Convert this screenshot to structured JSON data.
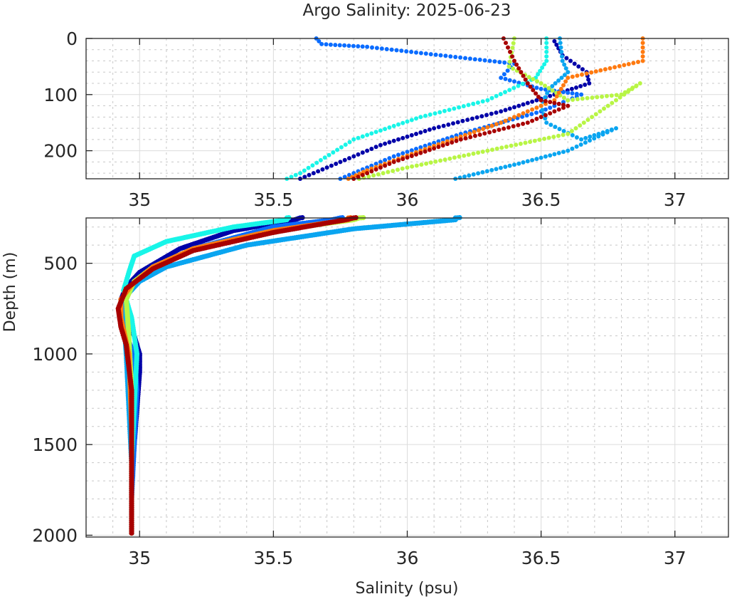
{
  "title": "Argo Salinity: 2025-06-23",
  "colors": {
    "axis": "#262626",
    "grid_major": "#dcdcdc",
    "grid_minor": "#c8c8c8"
  },
  "chart_data": [
    {
      "name": "upper-panel",
      "type": "scatter",
      "title": "Argo Salinity: 2025-06-23",
      "xlabel": "",
      "ylabel": "",
      "xlim": [
        34.8,
        37.2
      ],
      "ylim": [
        0,
        250
      ],
      "y_reversed": true,
      "xticks": [
        35,
        35.5,
        36,
        36.5,
        37
      ],
      "xtick_labels": [
        "35",
        "35.5",
        "36",
        "36.5",
        "37"
      ],
      "yticks": [
        0,
        100,
        200
      ],
      "ytick_labels": [
        "0",
        "100",
        "200"
      ],
      "grid": "major+minor",
      "legend": "none"
    },
    {
      "name": "lower-panel",
      "type": "scatter",
      "xlabel": "Salinity (psu)",
      "ylabel": "Depth (m)",
      "xlim": [
        34.8,
        37.2
      ],
      "ylim": [
        250,
        2010
      ],
      "y_reversed": true,
      "xticks": [
        35,
        35.5,
        36,
        36.5,
        37
      ],
      "xtick_labels": [
        "35",
        "35.5",
        "36",
        "36.5",
        "37"
      ],
      "yticks": [
        500,
        1000,
        1500,
        2000
      ],
      "ytick_labels": [
        "500",
        "1000",
        "1500",
        "2000"
      ],
      "grid": "major+minor",
      "legend": "none"
    }
  ],
  "profiles": [
    {
      "name": "float-dark-blue",
      "color": "#0000a8",
      "points": [
        [
          36.55,
          5
        ],
        [
          36.58,
          30
        ],
        [
          36.67,
          60
        ],
        [
          36.68,
          80
        ],
        [
          36.55,
          100
        ],
        [
          36.35,
          130
        ],
        [
          36.1,
          160
        ],
        [
          35.9,
          190
        ],
        [
          35.75,
          220
        ],
        [
          35.6,
          250
        ],
        [
          35.58,
          260
        ],
        [
          35.35,
          320
        ],
        [
          35.15,
          420
        ],
        [
          35.0,
          550
        ],
        [
          34.95,
          630
        ],
        [
          34.93,
          700
        ],
        [
          34.95,
          800
        ],
        [
          34.98,
          900
        ],
        [
          35.0,
          1000
        ],
        [
          35.0,
          1100
        ],
        [
          34.99,
          1300
        ],
        [
          34.98,
          1500
        ],
        [
          34.97,
          1700
        ],
        [
          34.97,
          2000
        ]
      ]
    },
    {
      "name": "float-blue",
      "color": "#0a6cff",
      "points": [
        [
          35.66,
          0
        ],
        [
          35.68,
          10
        ],
        [
          35.85,
          15
        ],
        [
          36.4,
          45
        ],
        [
          36.35,
          70
        ],
        [
          36.5,
          90
        ],
        [
          36.65,
          100
        ],
        [
          36.5,
          130
        ],
        [
          36.2,
          170
        ],
        [
          35.95,
          210
        ],
        [
          35.75,
          250
        ],
        [
          35.72,
          260
        ],
        [
          35.5,
          300
        ],
        [
          35.2,
          420
        ],
        [
          35.05,
          520
        ],
        [
          34.97,
          620
        ],
        [
          34.94,
          700
        ],
        [
          34.93,
          800
        ],
        [
          34.95,
          900
        ],
        [
          34.98,
          1000
        ],
        [
          34.99,
          1200
        ],
        [
          34.98,
          1500
        ],
        [
          34.97,
          1800
        ],
        [
          34.97,
          2000
        ]
      ]
    },
    {
      "name": "float-sky",
      "color": "#0aa5f0",
      "points": [
        [
          36.57,
          0
        ],
        [
          36.58,
          40
        ],
        [
          36.6,
          60
        ],
        [
          36.53,
          90
        ],
        [
          36.5,
          120
        ],
        [
          36.52,
          150
        ],
        [
          36.65,
          180
        ],
        [
          36.78,
          160
        ],
        [
          36.6,
          200
        ],
        [
          36.4,
          225
        ],
        [
          36.18,
          250
        ],
        [
          36.18,
          260
        ],
        [
          35.8,
          310
        ],
        [
          35.4,
          400
        ],
        [
          35.1,
          520
        ],
        [
          35.0,
          600
        ],
        [
          34.95,
          680
        ],
        [
          34.94,
          800
        ],
        [
          34.95,
          1000
        ],
        [
          34.96,
          1300
        ],
        [
          34.97,
          1600
        ],
        [
          34.97,
          2000
        ]
      ]
    },
    {
      "name": "float-cyan",
      "color": "#18f5e8",
      "points": [
        [
          36.52,
          0
        ],
        [
          36.52,
          40
        ],
        [
          36.48,
          70
        ],
        [
          36.3,
          110
        ],
        [
          36.05,
          140
        ],
        [
          35.8,
          180
        ],
        [
          35.6,
          240
        ],
        [
          35.55,
          250
        ],
        [
          35.55,
          260
        ],
        [
          35.35,
          300
        ],
        [
          35.1,
          380
        ],
        [
          34.98,
          460
        ],
        [
          34.96,
          550
        ],
        [
          34.94,
          650
        ],
        [
          34.97,
          800
        ],
        [
          34.99,
          1000
        ],
        [
          34.98,
          1300
        ],
        [
          34.97,
          1600
        ],
        [
          34.97,
          2000
        ]
      ]
    },
    {
      "name": "float-lime",
      "color": "#b8f545",
      "points": [
        [
          36.4,
          0
        ],
        [
          36.38,
          50
        ],
        [
          36.5,
          80
        ],
        [
          36.6,
          110
        ],
        [
          36.8,
          100
        ],
        [
          36.87,
          80
        ],
        [
          36.6,
          170
        ],
        [
          36.3,
          200
        ],
        [
          36.0,
          230
        ],
        [
          35.82,
          250
        ],
        [
          35.8,
          260
        ],
        [
          35.5,
          320
        ],
        [
          35.2,
          420
        ],
        [
          35.05,
          520
        ],
        [
          34.98,
          600
        ],
        [
          34.95,
          700
        ],
        [
          34.96,
          900
        ],
        [
          34.97,
          1200
        ],
        [
          34.97,
          1600
        ],
        [
          34.97,
          2000
        ]
      ]
    },
    {
      "name": "float-orange",
      "color": "#ff7a10",
      "points": [
        [
          36.88,
          0
        ],
        [
          36.88,
          40
        ],
        [
          36.6,
          70
        ],
        [
          36.55,
          110
        ],
        [
          36.35,
          150
        ],
        [
          36.05,
          200
        ],
        [
          35.85,
          235
        ],
        [
          35.78,
          250
        ],
        [
          35.78,
          260
        ],
        [
          35.5,
          320
        ],
        [
          35.2,
          420
        ],
        [
          35.05,
          520
        ],
        [
          34.97,
          620
        ],
        [
          34.93,
          700
        ],
        [
          34.93,
          800
        ],
        [
          34.96,
          1000
        ],
        [
          34.97,
          1400
        ],
        [
          34.97,
          2000
        ]
      ]
    },
    {
      "name": "float-dark-red",
      "color": "#a80000",
      "points": [
        [
          36.36,
          0
        ],
        [
          36.4,
          40
        ],
        [
          36.45,
          80
        ],
        [
          36.5,
          110
        ],
        [
          36.6,
          120
        ],
        [
          36.45,
          150
        ],
        [
          36.2,
          180
        ],
        [
          35.95,
          220
        ],
        [
          35.8,
          250
        ],
        [
          35.77,
          260
        ],
        [
          35.5,
          330
        ],
        [
          35.2,
          430
        ],
        [
          35.05,
          530
        ],
        [
          34.95,
          640
        ],
        [
          34.92,
          750
        ],
        [
          34.93,
          850
        ],
        [
          34.95,
          950
        ],
        [
          34.97,
          1200
        ],
        [
          34.97,
          2000
        ]
      ]
    }
  ]
}
